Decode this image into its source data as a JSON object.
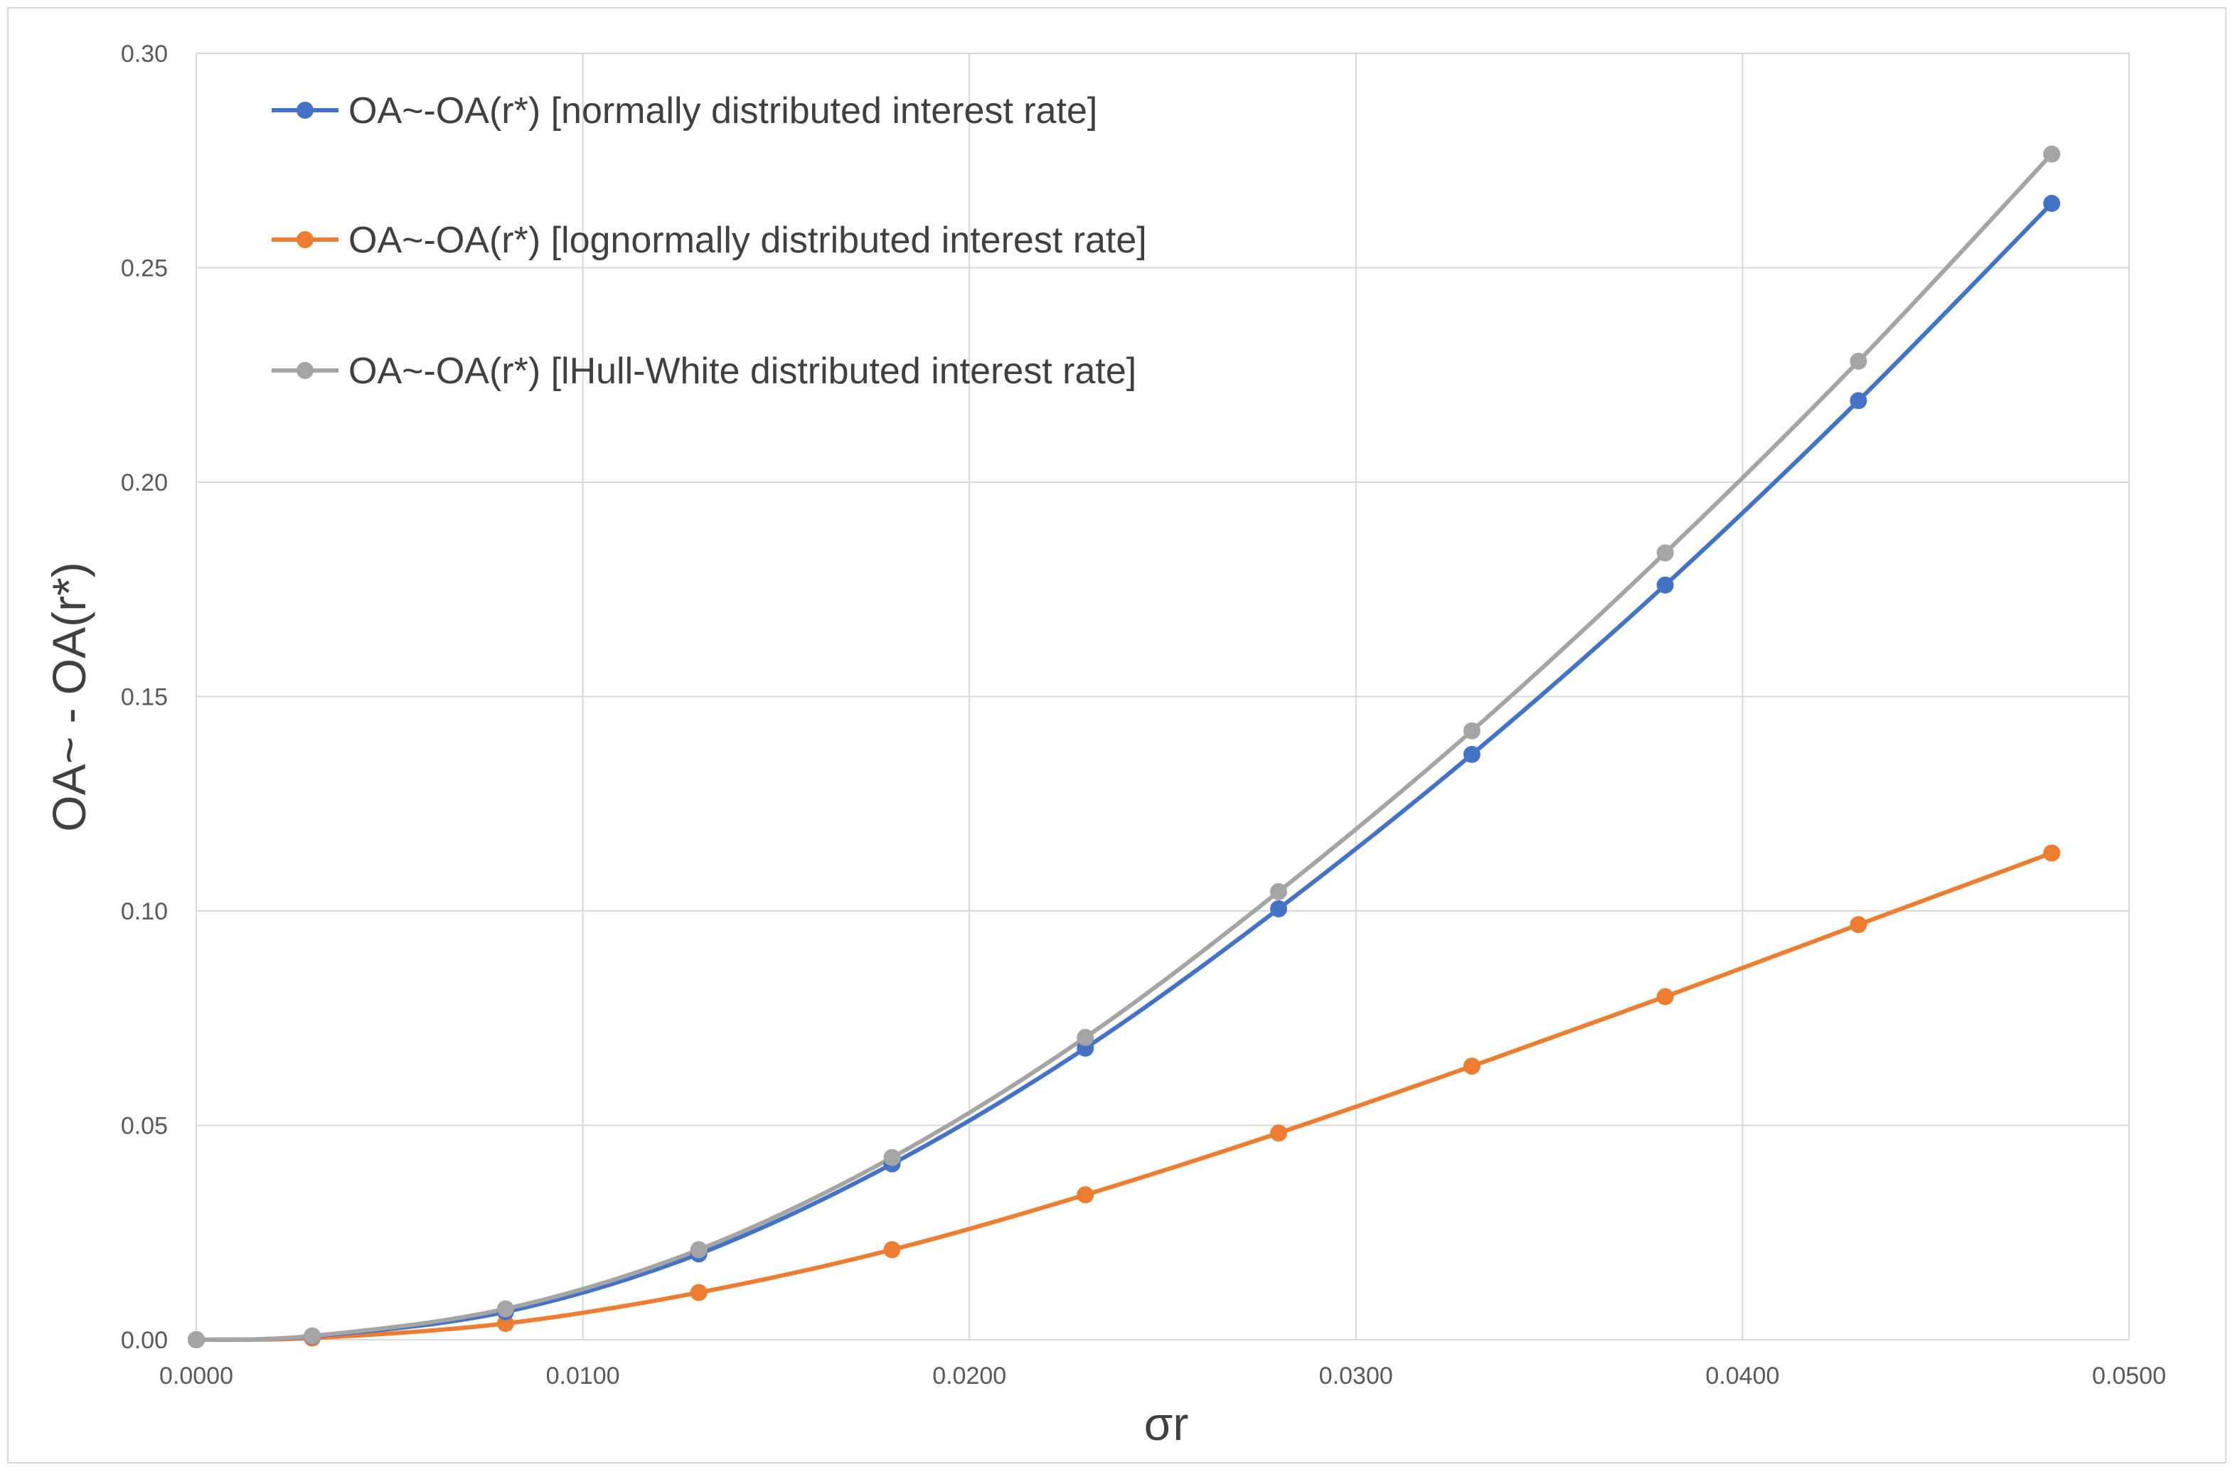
{
  "chart_data": {
    "type": "line",
    "title": "",
    "xlabel": "σr",
    "ylabel": "OA~ - OA(r*)",
    "xlim": [
      0,
      0.05
    ],
    "ylim": [
      0,
      0.3
    ],
    "x_ticks": [
      "0.0000",
      "0.0100",
      "0.0200",
      "0.0300",
      "0.0400",
      "0.0500"
    ],
    "y_ticks": [
      "0.00",
      "0.05",
      "0.10",
      "0.15",
      "0.20",
      "0.25",
      "0.30"
    ],
    "grid": true,
    "legend_position": "top-left",
    "x": [
      0.0,
      0.003,
      0.008,
      0.013,
      0.018,
      0.023,
      0.028,
      0.033,
      0.038,
      0.043,
      0.048
    ],
    "series": [
      {
        "name": "OA~-OA(r*) [normally distributed interest rate]",
        "color": "#4472C4",
        "values": [
          0.0,
          0.0008,
          0.0065,
          0.02,
          0.041,
          0.068,
          0.1005,
          0.1365,
          0.176,
          0.219,
          0.265
        ]
      },
      {
        "name": "OA~-OA(r*) [lognormally distributed interest rate]",
        "color": "#ED7D31",
        "values": [
          0.0,
          0.0004,
          0.0038,
          0.011,
          0.021,
          0.0338,
          0.0482,
          0.0638,
          0.08,
          0.0968,
          0.1135
        ]
      },
      {
        "name": "OA~-OA(r*) [lHull-White distributed interest rate]",
        "color": "#A5A5A5",
        "values": [
          0.0,
          0.0009,
          0.0072,
          0.021,
          0.0425,
          0.0705,
          0.1045,
          0.142,
          0.1835,
          0.2282,
          0.2765
        ]
      }
    ]
  }
}
